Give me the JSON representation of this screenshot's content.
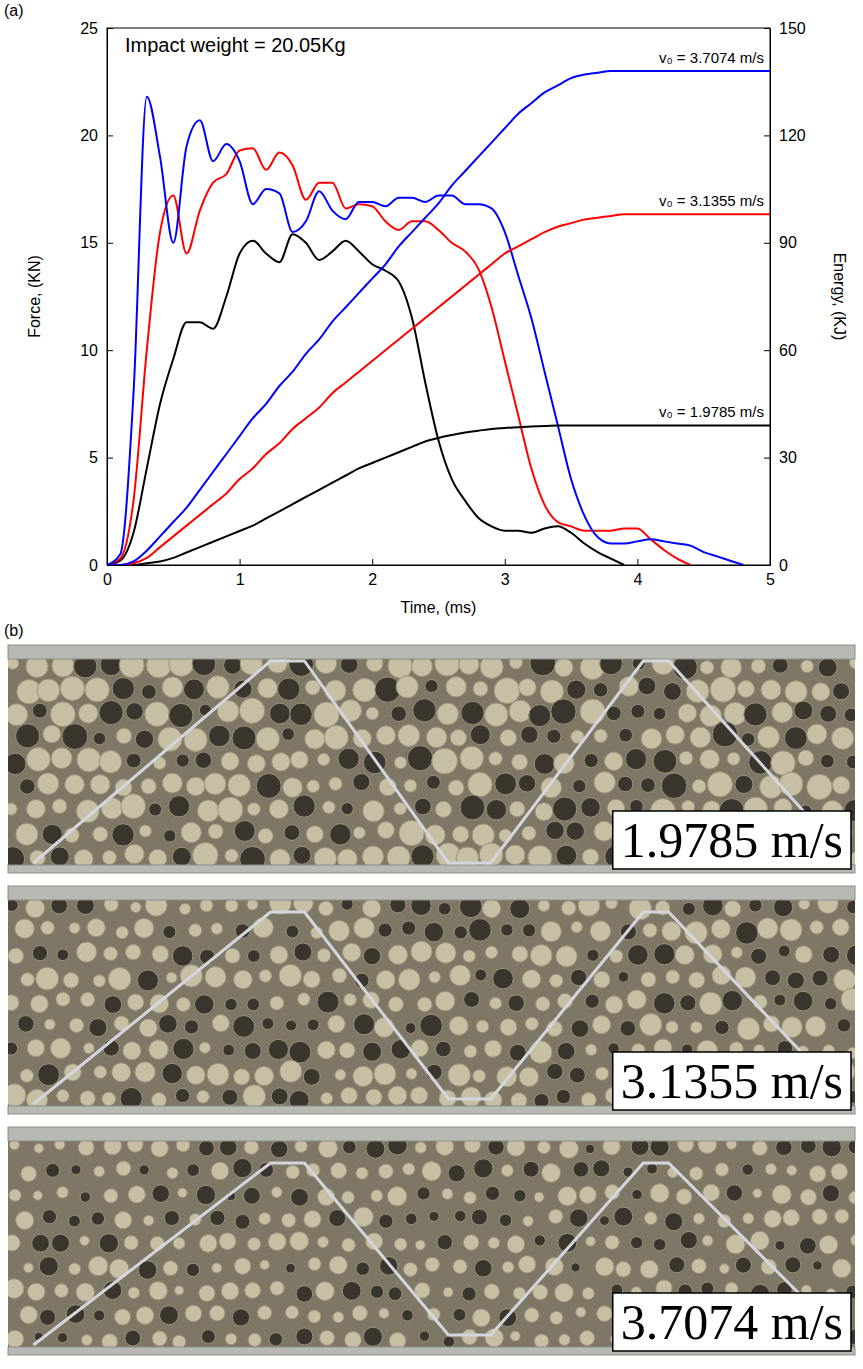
{
  "panel_labels": [
    "(a)",
    "(b)"
  ],
  "chart_data": {
    "type": "line",
    "annotations": [
      "Impact weight = 20.05Kg"
    ],
    "x_label": "Time, (ms)",
    "y_label": "Force, (KN)",
    "y2_label": "Energy, (KJ)",
    "xlim": [
      0,
      5
    ],
    "xticks": [
      0,
      1,
      2,
      3,
      4,
      5
    ],
    "ylim": [
      0,
      25
    ],
    "yticks": [
      0,
      5,
      10,
      15,
      20,
      25
    ],
    "y2lim": [
      0,
      150
    ],
    "y2ticks": [
      0,
      30,
      60,
      90,
      120,
      150
    ],
    "x": [
      0,
      0.1,
      0.2,
      0.3,
      0.4,
      0.5,
      0.6,
      0.7,
      0.8,
      0.9,
      1,
      1.1,
      1.2,
      1.3,
      1.4,
      1.5,
      1.6,
      1.7,
      1.8,
      1.9,
      2,
      2.1,
      2.2,
      2.3,
      2.4,
      2.5,
      2.6,
      2.7,
      2.8,
      2.9,
      3,
      3.1,
      3.2,
      3.3,
      3.4,
      3.5,
      3.6,
      3.7,
      3.8,
      3.9,
      4,
      4.1,
      4.2,
      4.3,
      4.4,
      4.5,
      4.6,
      4.7,
      4.8,
      4.9,
      5
    ],
    "series": [
      {
        "color": "#000000",
        "values": [
          0,
          0.2,
          1.5,
          4.5,
          7.5,
          9.6,
          11.3,
          11.3,
          11.0,
          12.5,
          14.5,
          15.1,
          14.5,
          14.1,
          15.4,
          15.0,
          14.2,
          14.6,
          15.1,
          14.6,
          14.0,
          13.7,
          13.2,
          11.5,
          8.5,
          5.8,
          4.0,
          3.0,
          2.2,
          1.8,
          1.6,
          1.6,
          1.5,
          1.7,
          1.8,
          1.5,
          1.0,
          0.6,
          0.3,
          0,
          null,
          null,
          null,
          null,
          null,
          null,
          null,
          null,
          null,
          null,
          null
        ]
      },
      {
        "color": "#ff0000",
        "values": [
          0,
          0.3,
          3,
          10,
          15.5,
          17.2,
          14.5,
          16.5,
          17.8,
          18.2,
          19.3,
          19.4,
          18.4,
          19.2,
          18.6,
          17.0,
          17.8,
          17.8,
          16.6,
          16.8,
          16.7,
          16.0,
          15.6,
          16.0,
          16.0,
          15.6,
          15.0,
          14.6,
          13.8,
          12.0,
          9.5,
          7.0,
          4.5,
          2.8,
          2.0,
          1.8,
          1.6,
          1.6,
          1.6,
          1.7,
          1.7,
          1.2,
          0.7,
          0.3,
          0,
          null,
          null,
          null,
          null,
          null,
          null
        ]
      },
      {
        "color": "#0000ff",
        "values": [
          0,
          0.5,
          8,
          21.8,
          19,
          15,
          19.5,
          20.7,
          18.8,
          19.6,
          18.8,
          16.8,
          17.5,
          17.3,
          15.5,
          16.0,
          17.4,
          16.5,
          16.1,
          16.9,
          16.9,
          16.7,
          17.1,
          17.1,
          16.9,
          17.2,
          17.2,
          16.8,
          16.8,
          16.6,
          15.5,
          13.5,
          11.5,
          9.0,
          6.5,
          4.0,
          2.3,
          1.3,
          1.0,
          1.0,
          1.1,
          1.2,
          1.1,
          1.0,
          0.9,
          0.6,
          0.4,
          0.2,
          0,
          null,
          null
        ]
      },
      {
        "name": "v₀ = 1.9785 m/s",
        "color": "#000000",
        "axis": "y2",
        "values": [
          0,
          0,
          0,
          0.5,
          1,
          2,
          3.5,
          5,
          6.5,
          8,
          9.5,
          11,
          13,
          15,
          17,
          19,
          21,
          23,
          25,
          27,
          28.5,
          30,
          31.5,
          33,
          34.5,
          35.5,
          36.3,
          37,
          37.5,
          38,
          38.3,
          38.5,
          38.7,
          38.8,
          39,
          39,
          39,
          39,
          39,
          39,
          39,
          39,
          39,
          39,
          39,
          39,
          39,
          39,
          39,
          39,
          39
        ]
      },
      {
        "name": "v₀ = 3.1355 m/s",
        "color": "#ff0000",
        "axis": "y2",
        "values": [
          0,
          0,
          0.5,
          2,
          5,
          8,
          11,
          14,
          17,
          20,
          24,
          27,
          31,
          34,
          38,
          41,
          44,
          48,
          51,
          54,
          57,
          60,
          63,
          66,
          69,
          72,
          75,
          78,
          81,
          84,
          87,
          89,
          91,
          93,
          94.5,
          95.5,
          96.5,
          97,
          97.5,
          98,
          98,
          98,
          98,
          98,
          98,
          98,
          98,
          98,
          98,
          98,
          98
        ]
      },
      {
        "name": "v₀ = 3.7074 m/s",
        "color": "#0000ff",
        "axis": "y2",
        "values": [
          0,
          0,
          1,
          4,
          8,
          12,
          16,
          21,
          26,
          31,
          36,
          41,
          45,
          50,
          54,
          59,
          63,
          68,
          72,
          76,
          80,
          84,
          89,
          93,
          97,
          101,
          106,
          110,
          114,
          118,
          122,
          126,
          129,
          132,
          134,
          136,
          137,
          137.5,
          138,
          138,
          138,
          138,
          138,
          138,
          138,
          138,
          138,
          138,
          138,
          138,
          138
        ]
      }
    ]
  },
  "photos": {
    "labels": [
      "1.9785 m/s",
      "3.1355 m/s",
      "3.7074 m/s"
    ]
  }
}
